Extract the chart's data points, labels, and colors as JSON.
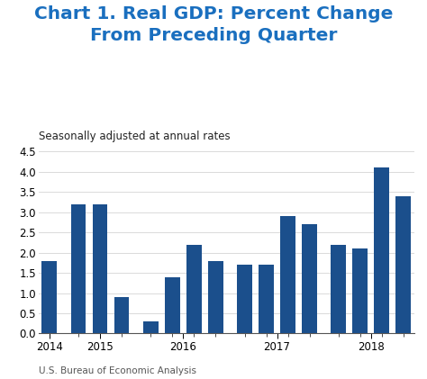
{
  "title": "Chart 1. Real GDP: Percent Change\nFrom Preceding Quarter",
  "subtitle": "Seasonally adjusted at annual rates",
  "footnote": "U.S. Bureau of Economic Analysis",
  "bar_color": "#1b4f8c",
  "background_color": "#ffffff",
  "title_color": "#1a6fbf",
  "subtitle_color": "#222222",
  "footnote_color": "#555555",
  "values": [
    1.8,
    3.2,
    3.2,
    0.9,
    0.3,
    1.4,
    2.2,
    1.8,
    1.7,
    1.7,
    2.9,
    2.7,
    2.2,
    2.1,
    4.1,
    3.4
  ],
  "groups": [
    1,
    3,
    4,
    4,
    4
  ],
  "year_labels": [
    "2014",
    "2015",
    "2016",
    "2017",
    "2018"
  ],
  "ylim": [
    0,
    4.5
  ],
  "yticks": [
    0,
    0.5,
    1.0,
    1.5,
    2.0,
    2.5,
    3.0,
    3.5,
    4.0,
    4.5
  ],
  "title_fontsize": 14.5,
  "subtitle_fontsize": 8.5,
  "axis_fontsize": 8.5,
  "footnote_fontsize": 7.5
}
